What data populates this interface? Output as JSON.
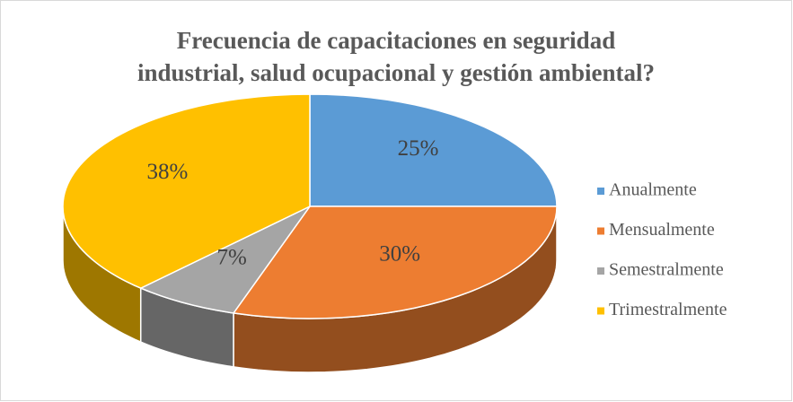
{
  "chart_data": {
    "type": "pie",
    "title": [
      "Frecuencia de capacitaciones en seguridad",
      "industrial, salud ocupacional y gestión ambiental?"
    ],
    "categories": [
      "Anualmente",
      "Mensualmente",
      "Semestralmente",
      "Trimestralmente"
    ],
    "values": [
      25,
      30,
      7,
      38
    ],
    "value_labels": [
      "25%",
      "30%",
      "7%",
      "38%"
    ],
    "colors": [
      "#5b9bd5",
      "#ed7d31",
      "#a5a5a5",
      "#ffc000"
    ],
    "legend": "right"
  }
}
